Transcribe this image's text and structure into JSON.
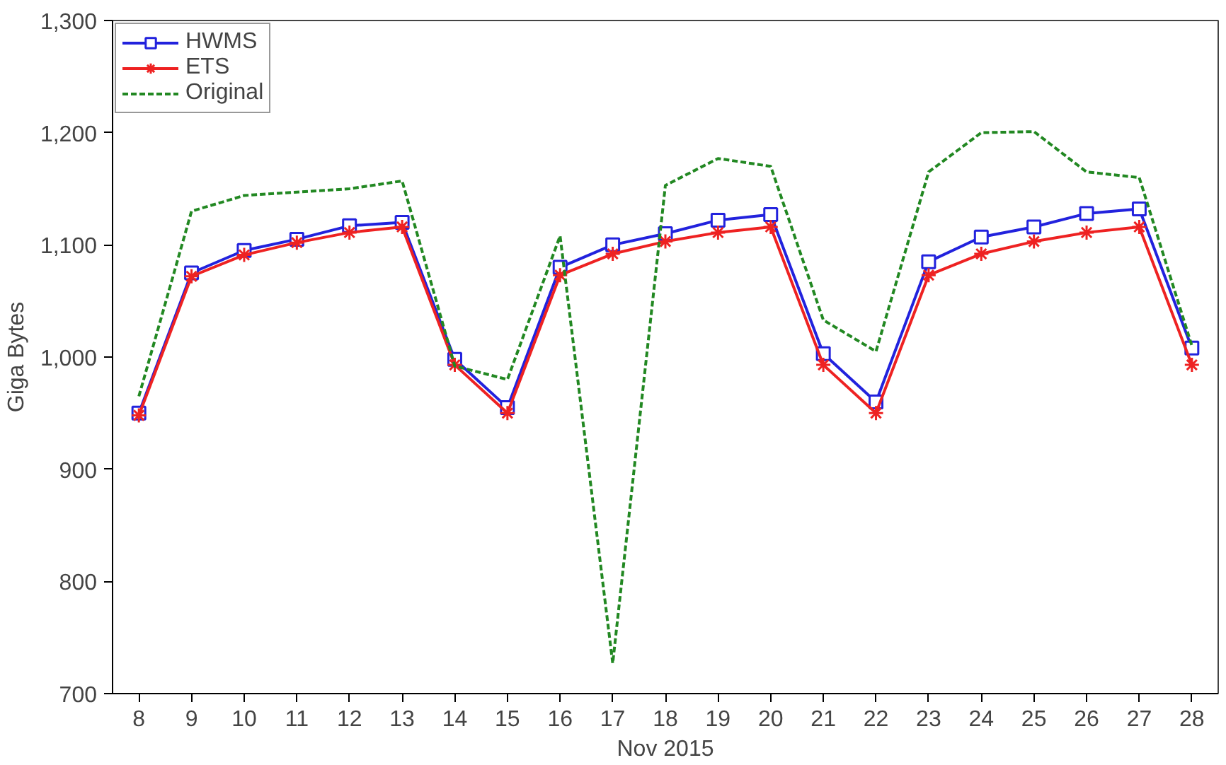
{
  "chart_data": {
    "type": "line",
    "xlabel": "Nov 2015",
    "ylabel": "Giga Bytes",
    "x": [
      8,
      9,
      10,
      11,
      12,
      13,
      14,
      15,
      16,
      17,
      18,
      19,
      20,
      21,
      22,
      23,
      24,
      25,
      26,
      27,
      28
    ],
    "series": [
      {
        "name": "HWMS",
        "color": "#2222dd",
        "marker": "square",
        "line_style": "solid",
        "values": [
          950,
          1075,
          1095,
          1105,
          1117,
          1120,
          998,
          955,
          1080,
          1100,
          1110,
          1122,
          1127,
          1003,
          960,
          1085,
          1107,
          1116,
          1128,
          1132,
          1008
        ]
      },
      {
        "name": "ETS",
        "color": "#ee2222",
        "marker": "cross",
        "line_style": "solid",
        "values": [
          948,
          1072,
          1091,
          1102,
          1111,
          1116,
          993,
          950,
          1073,
          1092,
          1103,
          1111,
          1116,
          993,
          950,
          1073,
          1092,
          1103,
          1111,
          1116,
          993
        ]
      },
      {
        "name": "Original",
        "color": "#228822",
        "marker": "none",
        "line_style": "dashed",
        "values": [
          965,
          1130,
          1144,
          1147,
          1150,
          1157,
          992,
          980,
          1108,
          727,
          1153,
          1177,
          1170,
          1033,
          1005,
          1165,
          1200,
          1201,
          1165,
          1160,
          1010
        ]
      }
    ],
    "xlim": [
      7.5,
      28.5
    ],
    "xticks": [
      8,
      9,
      10,
      11,
      12,
      13,
      14,
      15,
      16,
      17,
      18,
      19,
      20,
      21,
      22,
      23,
      24,
      25,
      26,
      27,
      28
    ],
    "ylim": [
      700,
      1300
    ],
    "yticks": [
      {
        "value": 700,
        "label": "700"
      },
      {
        "value": 800,
        "label": "800"
      },
      {
        "value": 900,
        "label": "900"
      },
      {
        "value": 1000,
        "label": "1,000"
      },
      {
        "value": 1100,
        "label": "1,100"
      },
      {
        "value": 1200,
        "label": "1,200"
      },
      {
        "value": 1300,
        "label": "1,300"
      }
    ],
    "grid": false,
    "legend": "top left"
  }
}
